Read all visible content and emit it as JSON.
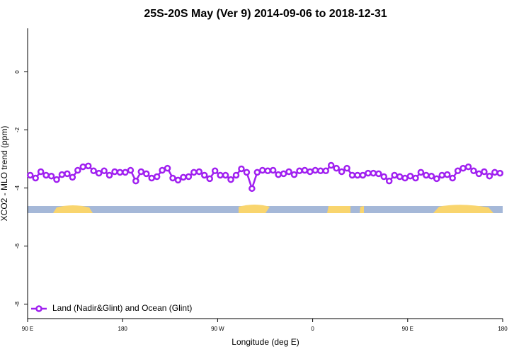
{
  "chart_data": {
    "type": "line",
    "title": "25S-20S May (Ver 9)   2014-09-06 to 2018-12-31",
    "x_label": "Longitude (deg E)",
    "y_label": "XCO2 - MLO trend (ppm)",
    "x": [
      92.5,
      97.5,
      102.5,
      107.5,
      112.5,
      117.5,
      122.5,
      127.5,
      132.5,
      137.5,
      142.5,
      147.5,
      152.5,
      157.5,
      162.5,
      167.5,
      172.5,
      177.5,
      182.5,
      187.5,
      192.5,
      197.5,
      202.5,
      207.5,
      212.5,
      217.5,
      222.5,
      227.5,
      232.5,
      237.5,
      242.5,
      247.5,
      252.5,
      257.5,
      262.5,
      267.5,
      272.5,
      277.5,
      282.5,
      287.5,
      292.5,
      297.5,
      302.5,
      307.5,
      312.5,
      317.5,
      322.5,
      327.5,
      332.5,
      337.5,
      342.5,
      347.5,
      352.5,
      357.5,
      362.5,
      367.5,
      372.5,
      377.5,
      382.5,
      387.5,
      392.5,
      397.5,
      402.5,
      407.5,
      412.5,
      417.5,
      422.5,
      427.5,
      432.5,
      437.5,
      442.5,
      447.5,
      452.5,
      457.5,
      462.5,
      467.5,
      472.5,
      477.5,
      482.5,
      487.5,
      492.5,
      497.5,
      502.5,
      507.5,
      512.5,
      517.5,
      522.5,
      527.5,
      532.5,
      537.5
    ],
    "series": [
      {
        "name": "Land (Nadir&Glint) and Ocean (Glint)",
        "color": "#a020f0",
        "values": [
          -3.56,
          -3.66,
          -3.44,
          -3.56,
          -3.59,
          -3.71,
          -3.54,
          -3.51,
          -3.63,
          -3.39,
          -3.27,
          -3.24,
          -3.41,
          -3.49,
          -3.41,
          -3.56,
          -3.44,
          -3.46,
          -3.46,
          -3.39,
          -3.76,
          -3.44,
          -3.51,
          -3.66,
          -3.61,
          -3.39,
          -3.32,
          -3.66,
          -3.73,
          -3.63,
          -3.61,
          -3.46,
          -3.44,
          -3.56,
          -3.68,
          -3.41,
          -3.56,
          -3.56,
          -3.71,
          -3.56,
          -3.34,
          -3.46,
          -4.02,
          -3.46,
          -3.39,
          -3.41,
          -3.39,
          -3.54,
          -3.51,
          -3.44,
          -3.54,
          -3.41,
          -3.39,
          -3.44,
          -3.39,
          -3.41,
          -3.41,
          -3.22,
          -3.32,
          -3.44,
          -3.32,
          -3.56,
          -3.56,
          -3.56,
          -3.49,
          -3.49,
          -3.51,
          -3.61,
          -3.76,
          -3.56,
          -3.61,
          -3.66,
          -3.59,
          -3.66,
          -3.46,
          -3.56,
          -3.59,
          -3.68,
          -3.56,
          -3.54,
          -3.66,
          -3.41,
          -3.32,
          -3.27,
          -3.41,
          -3.51,
          -3.44,
          -3.59,
          -3.46,
          -3.49
        ]
      }
    ],
    "xlim": [
      90,
      540
    ],
    "xticks": [
      {
        "value": 90,
        "label": "90 E"
      },
      180,
      {
        "value": 270,
        "label": "90 W"
      },
      {
        "value": 360,
        "label": "0"
      },
      {
        "value": 450,
        "label": "90 E"
      },
      {
        "value": 540,
        "label": "180"
      }
    ],
    "ylim": [
      -8.5,
      1.5
    ],
    "yticks": [
      0,
      -2,
      -4,
      -6,
      -8
    ],
    "legend": "bottom-left"
  }
}
